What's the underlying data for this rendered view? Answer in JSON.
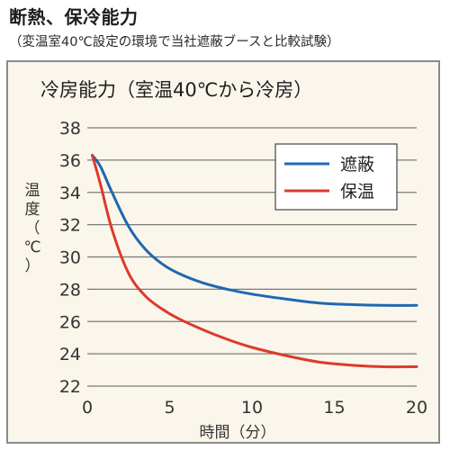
{
  "header": {
    "title": "断熱、保冷能力",
    "subtitle": "（変温室40℃設定の環境で当社遮蔽ブースと比較試験）"
  },
  "colors": {
    "background": "#fbf6ec",
    "grid": "#7a7a7a",
    "series_blue": "#1f68b0",
    "series_red": "#dd3a2a"
  },
  "chart_data": {
    "type": "line",
    "title": "冷房能力（室温40℃から冷房）",
    "xlabel": "時間（分）",
    "ylabel": "温度（℃）",
    "xlim": [
      0,
      20
    ],
    "ylim": [
      22,
      38
    ],
    "xticks": [
      0,
      5,
      10,
      15,
      20
    ],
    "yticks": [
      22,
      24,
      26,
      28,
      30,
      32,
      34,
      36,
      38
    ],
    "grid": "horizontal",
    "legend": "top-right",
    "series": [
      {
        "name": "遮蔽",
        "color": "#1f68b0",
        "x": [
          0.3,
          0.8,
          1.5,
          2.5,
          3.5,
          4.5,
          5.5,
          7,
          8.5,
          10,
          12,
          14,
          16,
          18,
          20
        ],
        "y": [
          36.3,
          35.6,
          34.0,
          31.9,
          30.5,
          29.6,
          29.0,
          28.4,
          28.0,
          27.7,
          27.4,
          27.15,
          27.05,
          27.0,
          27.0
        ]
      },
      {
        "name": "保温",
        "color": "#dd3a2a",
        "x": [
          0.3,
          0.8,
          1.5,
          2.5,
          3.5,
          4.5,
          5.5,
          7,
          8.5,
          10,
          12,
          14,
          16,
          18,
          20
        ],
        "y": [
          36.3,
          34.5,
          31.7,
          29.0,
          27.6,
          26.8,
          26.2,
          25.5,
          24.9,
          24.4,
          23.9,
          23.5,
          23.3,
          23.2,
          23.2
        ]
      }
    ]
  }
}
